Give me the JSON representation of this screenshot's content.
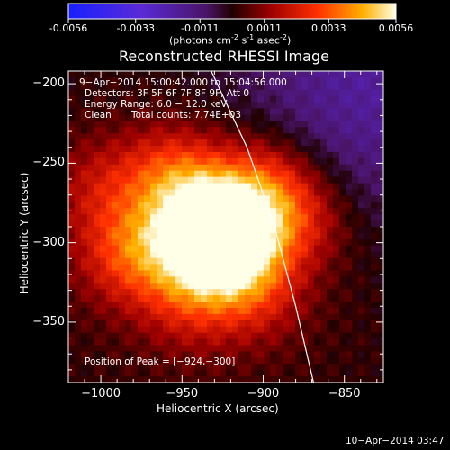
{
  "colorbar": {
    "ticks": [
      "-0.0056",
      "-0.0033",
      "-0.0011",
      "0.0011",
      "0.0033",
      "0.0056"
    ],
    "unit_main": "(photons cm",
    "unit_sup1": "-2",
    "unit_mid": " s",
    "unit_sup2": "-1",
    "unit_mid2": " asec",
    "unit_sup3": "-2",
    "unit_end": ")"
  },
  "chart_data": {
    "type": "heatmap",
    "title": "Reconstructed RHESSI Image",
    "xlabel": "Heliocentric X (arcsec)",
    "ylabel": "Heliocentric Y (arcsec)",
    "xlim": [
      -1020,
      -826
    ],
    "ylim": [
      -388,
      -192
    ],
    "x_ticks": [
      -1000,
      -950,
      -900,
      -850
    ],
    "y_ticks": [
      -200,
      -250,
      -300,
      -350
    ],
    "x_tick_labels": [
      "−1000",
      "−950",
      "−900",
      "−850"
    ],
    "y_tick_labels": [
      "−200",
      "−250",
      "−300",
      "−350"
    ],
    "color_range": [
      -0.0056,
      0.0056
    ],
    "peak": [
      -924,
      -300
    ],
    "sources": [
      {
        "x": -924,
        "y": -300,
        "amp": 1.0
      },
      {
        "x": -930,
        "y": -285,
        "amp": 0.55
      },
      {
        "x": -955,
        "y": -258,
        "amp": 0.45
      },
      {
        "x": -900,
        "y": -263,
        "amp": 0.4
      },
      {
        "x": -985,
        "y": -308,
        "amp": 0.35
      },
      {
        "x": -880,
        "y": -285,
        "amp": 0.35
      },
      {
        "x": -945,
        "y": -335,
        "amp": 0.3
      },
      {
        "x": -905,
        "y": -330,
        "amp": 0.3
      },
      {
        "x": -1000,
        "y": -265,
        "amp": 0.25
      },
      {
        "x": -960,
        "y": -300,
        "amp": 0.3
      }
    ],
    "limb_curve": [
      [
        -932,
        -192
      ],
      [
        -910,
        -240
      ],
      [
        -893,
        -290
      ],
      [
        -880,
        -340
      ],
      [
        -869,
        -388
      ]
    ]
  },
  "info": {
    "time": "9−Apr−2014 15:00:42.000 to 15:04:56.000",
    "detectors": "Detectors: 3F 5F 6F 7F 8F 9F, Att 0",
    "energy": "Energy Range: 6.0 − 12.0 keV",
    "clean": "Clean",
    "counts": "Total counts: 7.74E+03",
    "peak_label": "Position of Peak = [−924,−300]"
  },
  "footer": {
    "timestamp": "10−Apr−2014 03:47"
  }
}
